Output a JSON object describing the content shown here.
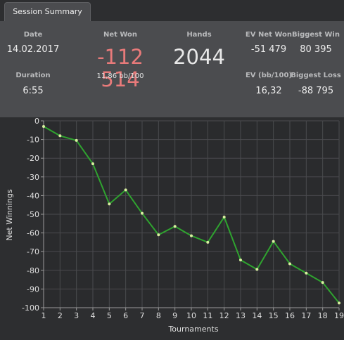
{
  "tab": {
    "label": "Session Summary"
  },
  "summary": {
    "date_label": "Date",
    "date_value": "14.02.2017",
    "duration_label": "Duration",
    "duration_value": "6:55",
    "net_won_label": "Net Won",
    "net_won_value": "-112 514",
    "bb_per_100": "11,86 bb/100",
    "hands_label": "Hands",
    "hands_value": "2044",
    "ev_net_won_label": "EV Net Won",
    "ev_net_won_value": "-51 479",
    "ev_bb_label": "EV (bb/100)",
    "ev_bb_value": "16,32",
    "biggest_win_label": "Biggest Win",
    "biggest_win_value": "80 395",
    "biggest_loss_label": "Biggest Loss",
    "biggest_loss_value": "-88 795"
  },
  "colors": {
    "net_won": "#e87a7a",
    "line": "#2fa32f",
    "point": "#d8f0a0"
  },
  "chart_data": {
    "type": "line",
    "xlabel": "Tournaments",
    "ylabel": "Net Winnings",
    "x": [
      1,
      2,
      3,
      4,
      5,
      6,
      7,
      8,
      9,
      10,
      11,
      12,
      13,
      14,
      15,
      16,
      17,
      18,
      19
    ],
    "y_ticks": [
      0,
      -10,
      -20,
      -30,
      -40,
      -50,
      -60,
      -70,
      -80,
      -90,
      -100
    ],
    "series": [
      {
        "values": [
          -3,
          -8,
          -10.5,
          -23,
          -44.5,
          -37,
          -49.5,
          -61,
          -56.5,
          -61.5,
          -65,
          -51.5,
          -74.5,
          -79.5,
          -64.5,
          -76.5,
          -81.5,
          -86.5,
          -97.5
        ]
      }
    ],
    "ylim": [
      -100,
      0
    ],
    "xlim": [
      1,
      19
    ],
    "grid": true
  }
}
